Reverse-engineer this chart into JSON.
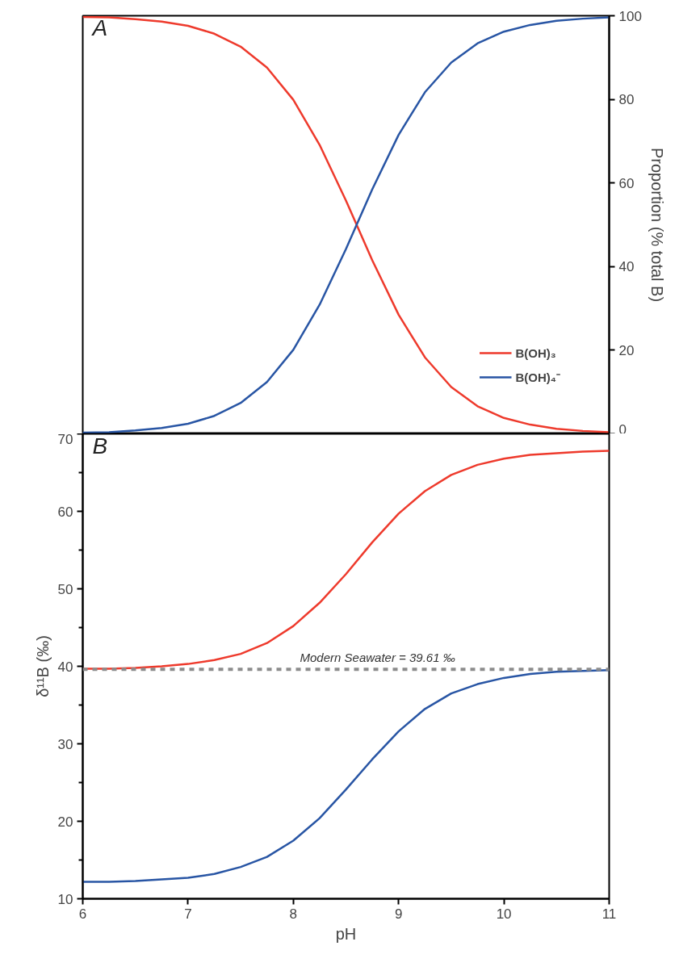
{
  "chart_data": [
    {
      "type": "line",
      "annotations": [
        "A"
      ],
      "x": [
        6.0,
        6.25,
        6.5,
        6.75,
        7.0,
        7.25,
        7.5,
        7.75,
        8.0,
        8.25,
        8.5,
        8.75,
        9.0,
        9.25,
        9.5,
        9.75,
        10.0,
        10.25,
        10.5,
        10.75,
        11.0
      ],
      "series": [
        {
          "name": "B(OH)₃",
          "color": "#ee3a2c",
          "values": [
            99.7,
            99.6,
            99.2,
            98.6,
            97.6,
            95.7,
            92.6,
            87.6,
            79.9,
            69.1,
            55.8,
            41.5,
            28.5,
            18.3,
            11.2,
            6.6,
            3.8,
            2.2,
            1.2,
            0.7,
            0.4
          ]
        },
        {
          "name": "B(OH)₄⁻",
          "color": "#2855a4",
          "values": [
            0.3,
            0.4,
            0.8,
            1.4,
            2.4,
            4.3,
            7.4,
            12.4,
            20.1,
            30.9,
            44.2,
            58.5,
            71.5,
            81.7,
            88.8,
            93.4,
            96.2,
            97.8,
            98.8,
            99.3,
            99.6
          ]
        }
      ],
      "xlim": [
        6,
        11
      ],
      "ylim": [
        0,
        100
      ],
      "yticks": [
        0,
        20,
        40,
        60,
        80,
        100
      ],
      "ylabel": "Proportion (% total B)",
      "tick_labels": "y",
      "legend": "bottom right",
      "grid": false,
      "marker": "none",
      "line_style": "solid"
    },
    {
      "type": "line",
      "annotations": [
        "B"
      ],
      "x": [
        6.0,
        6.25,
        6.5,
        6.75,
        7.0,
        7.25,
        7.5,
        7.75,
        8.0,
        8.25,
        8.5,
        8.75,
        9.0,
        9.25,
        9.5,
        9.75,
        10.0,
        10.25,
        10.5,
        10.75,
        11.0
      ],
      "series": [
        {
          "color": "#ee3a2c",
          "values": [
            39.7,
            39.7,
            39.8,
            40.0,
            40.3,
            40.8,
            41.6,
            43.0,
            45.2,
            48.2,
            51.9,
            56.0,
            59.7,
            62.6,
            64.7,
            66.0,
            66.8,
            67.3,
            67.5,
            67.7,
            67.8
          ]
        },
        {
          "color": "#2855a4",
          "values": [
            12.2,
            12.2,
            12.3,
            12.5,
            12.7,
            13.2,
            14.1,
            15.4,
            17.5,
            20.4,
            24.1,
            28.0,
            31.6,
            34.5,
            36.5,
            37.7,
            38.5,
            39.0,
            39.3,
            39.4,
            39.5
          ]
        }
      ],
      "xlim": [
        6,
        11
      ],
      "ylim": [
        10,
        70
      ],
      "xticks": [
        6,
        7,
        8,
        9,
        10,
        11
      ],
      "yticks": [
        10,
        {
          "value": 15,
          "label": null
        },
        20,
        {
          "value": 25,
          "label": null
        },
        30,
        {
          "value": 35,
          "label": null
        },
        40,
        {
          "value": 45,
          "label": null
        },
        50,
        {
          "value": 55,
          "label": null
        },
        60,
        {
          "value": 65,
          "label": null
        },
        70
      ],
      "xlabel": "pH",
      "ylabel": "δ¹¹B (‰)",
      "ref_lines": [
        {
          "axis": "y",
          "value": 39.61,
          "label": "Modern Seawater = 39.61 ‰",
          "color": "#8c8c8c",
          "line_style": "dashed"
        }
      ],
      "grid": false,
      "marker": "none",
      "line_style": "solid"
    }
  ]
}
